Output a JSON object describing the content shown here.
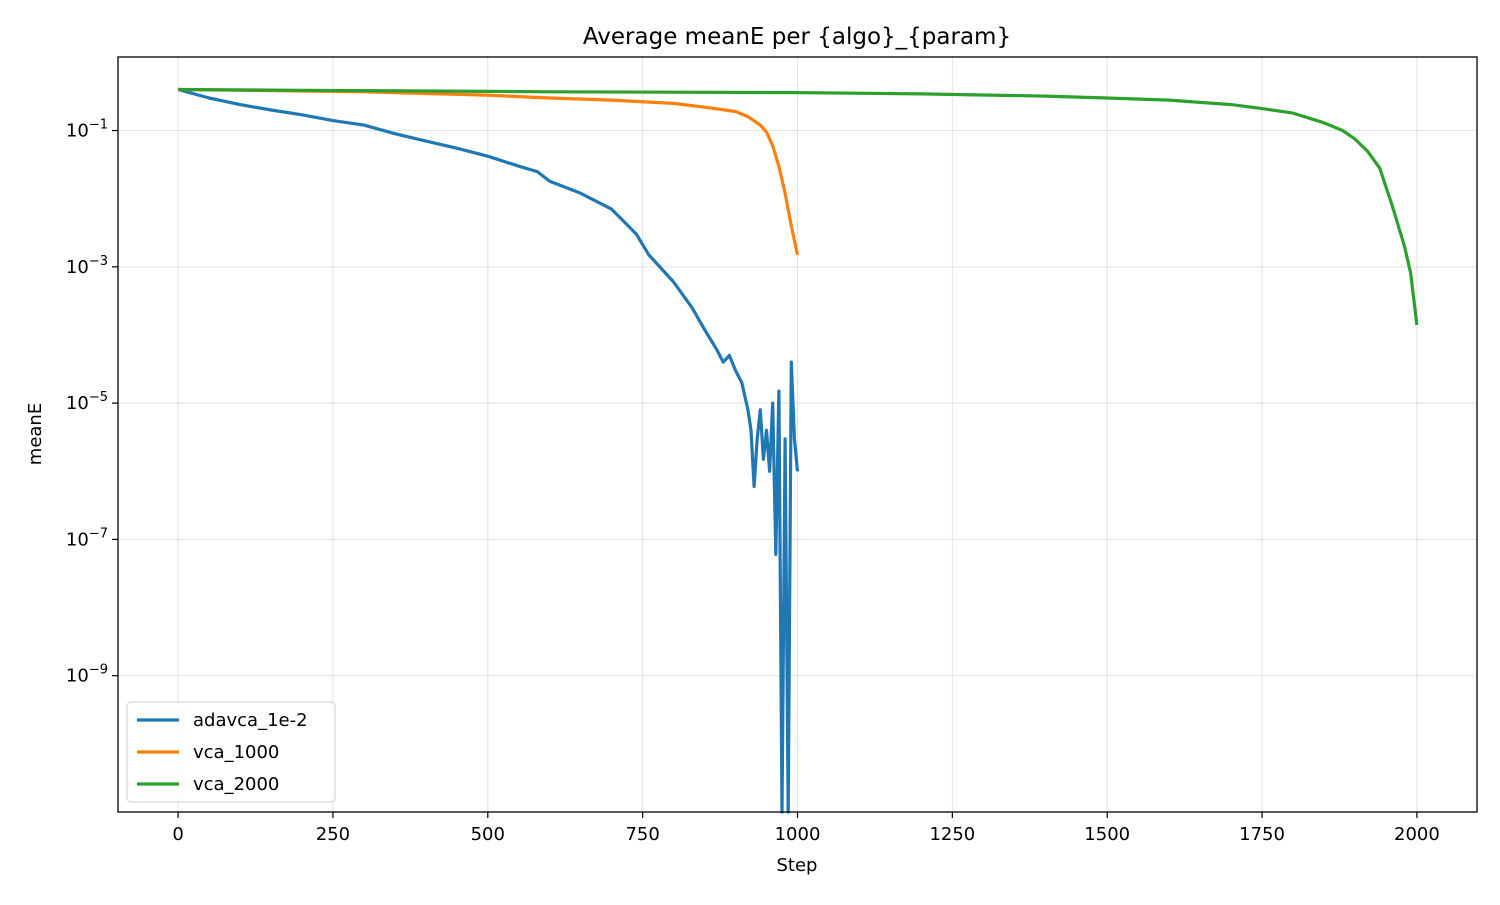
{
  "chart_data": {
    "type": "line",
    "title": "Average meanE per {algo}_{param}",
    "xlabel": "Step",
    "ylabel": "meanE",
    "xlim": [
      -97,
      2097
    ],
    "ylim": [
      1e-11,
      1.2
    ],
    "yscale": "log",
    "grid": true,
    "legend_position": "lower-left",
    "x_ticks": [
      0,
      250,
      500,
      750,
      1000,
      1250,
      1500,
      1750,
      2000
    ],
    "x_tick_labels": [
      "0",
      "250",
      "500",
      "750",
      "1000",
      "1250",
      "1500",
      "1750",
      "2000"
    ],
    "y_ticks": [
      1e-09,
      1e-07,
      1e-05,
      0.001,
      0.1
    ],
    "y_tick_labels": [
      {
        "base": "10",
        "exp": "−9"
      },
      {
        "base": "10",
        "exp": "−7"
      },
      {
        "base": "10",
        "exp": "−5"
      },
      {
        "base": "10",
        "exp": "−3"
      },
      {
        "base": "10",
        "exp": "−1"
      }
    ],
    "series": [
      {
        "name": "adavca_1e-2",
        "color": "#1f77b4",
        "x": [
          0,
          50,
          100,
          150,
          200,
          250,
          300,
          350,
          400,
          450,
          500,
          550,
          580,
          600,
          650,
          700,
          740,
          760,
          800,
          830,
          850,
          870,
          880,
          890,
          900,
          910,
          920,
          925,
          930,
          935,
          940,
          945,
          950,
          955,
          960,
          965,
          970,
          975,
          980,
          985,
          990,
          995,
          1000
        ],
        "y": [
          0.4,
          0.3,
          0.24,
          0.2,
          0.17,
          0.14,
          0.12,
          0.09,
          0.07,
          0.055,
          0.042,
          0.03,
          0.025,
          0.018,
          0.012,
          0.007,
          0.003,
          0.0015,
          0.0006,
          0.00025,
          0.00012,
          6e-05,
          4e-05,
          5e-05,
          3e-05,
          2e-05,
          8e-06,
          4e-06,
          6e-07,
          3e-06,
          8e-06,
          1.5e-06,
          4e-06,
          1e-06,
          1e-05,
          6e-08,
          1.5e-05,
          1e-11,
          3e-06,
          1e-11,
          4e-05,
          3e-06,
          1e-06
        ]
      },
      {
        "name": "vca_1000",
        "color": "#ff7f0e",
        "x": [
          0,
          100,
          200,
          300,
          400,
          500,
          600,
          700,
          800,
          850,
          900,
          920,
          940,
          950,
          960,
          970,
          980,
          990,
          1000
        ],
        "y": [
          0.4,
          0.39,
          0.38,
          0.37,
          0.35,
          0.33,
          0.3,
          0.28,
          0.25,
          0.22,
          0.19,
          0.16,
          0.12,
          0.095,
          0.06,
          0.03,
          0.012,
          0.004,
          0.0015
        ]
      },
      {
        "name": "vca_2000",
        "color": "#2ca02c",
        "x": [
          0,
          200,
          400,
          600,
          800,
          1000,
          1200,
          1400,
          1500,
          1600,
          1700,
          1750,
          1800,
          1850,
          1880,
          1900,
          1920,
          1940,
          1950,
          1960,
          1970,
          1980,
          1990,
          2000
        ],
        "y": [
          0.4,
          0.39,
          0.38,
          0.37,
          0.365,
          0.36,
          0.345,
          0.32,
          0.3,
          0.28,
          0.24,
          0.21,
          0.18,
          0.13,
          0.1,
          0.075,
          0.05,
          0.028,
          0.015,
          0.008,
          0.004,
          0.002,
          0.0008,
          0.00014
        ]
      }
    ]
  }
}
